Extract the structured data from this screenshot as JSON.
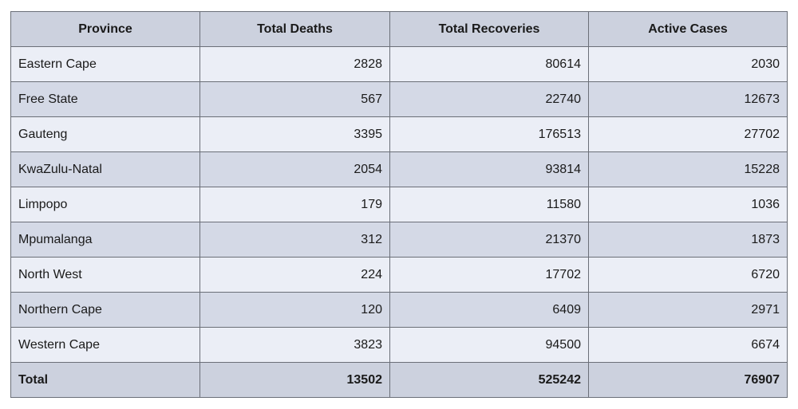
{
  "table": {
    "headers": [
      "Province",
      "Total Deaths",
      "Total Recoveries",
      "Active Cases"
    ],
    "rows": [
      [
        "Eastern Cape",
        "2828",
        "80614",
        "2030"
      ],
      [
        "Free State",
        "567",
        "22740",
        "12673"
      ],
      [
        "Gauteng",
        "3395",
        "176513",
        "27702"
      ],
      [
        "KwaZulu-Natal",
        "2054",
        "93814",
        "15228"
      ],
      [
        "Limpopo",
        "179",
        "11580",
        "1036"
      ],
      [
        "Mpumalanga",
        "312",
        "21370",
        "1873"
      ],
      [
        "North West",
        "224",
        "17702",
        "6720"
      ],
      [
        "Northern Cape",
        "120",
        "6409",
        "2971"
      ],
      [
        "Western Cape",
        "3823",
        "94500",
        "6674"
      ]
    ],
    "total": [
      "Total",
      "13502",
      "525242",
      "76907"
    ]
  },
  "colors": {
    "header_bg": "#ccd1de",
    "row_light": "#ebeef6",
    "row_dark": "#d4d9e6",
    "border": "#6b6f78"
  }
}
